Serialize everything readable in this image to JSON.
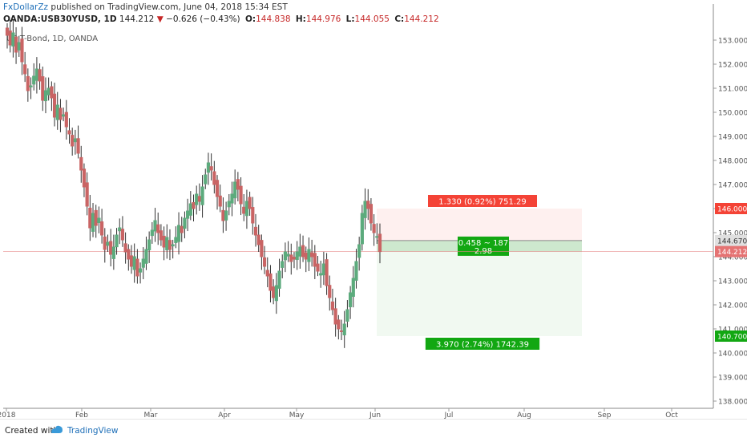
{
  "header": {
    "author": "FxDollarZz",
    "published_text": " published on TradingView.com, June 04, 2018 15:34 EST",
    "symbol": "OANDA:USB30YUSD, 1D",
    "last": "144.212",
    "change_arrow": "▼",
    "change": "−0.626 (−0.43%)",
    "open_label": "O:",
    "open": "144.838",
    "high_label": "H:",
    "high": "144.976",
    "low_label": "L:",
    "low": "144.055",
    "close_label": "C:",
    "close": "144.212"
  },
  "footer": {
    "created_with": "Created with",
    "brand": "TradingView",
    "logo_icon": "tradingview-logo-icon"
  },
  "colors": {
    "up": "#5cab7d",
    "down": "#c96464",
    "price_line": "#e88a8a"
  },
  "chart_data": {
    "type": "candlestick",
    "title": "US T-Bond, 1D, OANDA",
    "ylim": [
      137.7,
      153.5
    ],
    "y_ticks": [
      "153.000",
      "152.000",
      "151.000",
      "150.000",
      "149.000",
      "148.000",
      "147.000",
      "146.000",
      "145.000",
      "144.000",
      "143.000",
      "142.000",
      "141.000",
      "140.000",
      "139.000",
      "138.000"
    ],
    "x_ticks": [
      "2018",
      "Feb",
      "Mar",
      "Apr",
      "May",
      "Jun",
      "Jul",
      "Aug",
      "Sep",
      "Oct"
    ],
    "closes": [
      153.2,
      152.8,
      153.3,
      152.5,
      152.9,
      152.1,
      151.6,
      150.9,
      151.1,
      151.5,
      151.8,
      151.3,
      150.5,
      150.9,
      151.0,
      150.6,
      149.8,
      150.3,
      149.7,
      149.9,
      149.4,
      149.1,
      148.6,
      148.9,
      148.3,
      147.6,
      146.9,
      146.1,
      145.2,
      145.8,
      145.3,
      145.6,
      144.9,
      144.3,
      144.6,
      144.1,
      144.4,
      144.9,
      145.2,
      144.7,
      144.2,
      143.9,
      143.6,
      144.0,
      143.2,
      143.5,
      143.9,
      144.3,
      144.7,
      145.1,
      145.5,
      145.0,
      144.7,
      144.4,
      144.8,
      144.3,
      144.5,
      144.8,
      145.3,
      145.0,
      145.6,
      145.9,
      146.2,
      146.0,
      146.6,
      146.3,
      146.9,
      147.4,
      147.9,
      147.6,
      147.0,
      146.5,
      146.1,
      145.5,
      145.9,
      146.3,
      146.6,
      147.1,
      146.8,
      146.2,
      145.8,
      146.3,
      146.0,
      145.4,
      144.9,
      144.5,
      144.0,
      143.6,
      143.2,
      142.6,
      142.3,
      142.8,
      143.4,
      143.8,
      144.2,
      144.1,
      143.8,
      143.9,
      144.2,
      144.4,
      144.0,
      143.9,
      144.3,
      144.0,
      143.6,
      143.4,
      143.3,
      143.7,
      142.8,
      142.3,
      141.8,
      141.2,
      141.0,
      140.9,
      141.2,
      141.8,
      142.5,
      143.1,
      143.8,
      144.5,
      145.8,
      146.3,
      146.0,
      145.4,
      145.0,
      144.838,
      144.212
    ],
    "price_lines": {
      "current": "144.212",
      "entry": "144.670",
      "target": "146.000",
      "stop": "140.700"
    },
    "position": {
      "upper_label": "1.330 (0.92%) 751.29",
      "middle_label_1": "0.458 ~ 187",
      "middle_label_2": "2.98",
      "lower_label": "3.970 (2.74%) 1742.39",
      "entry": 144.67,
      "current": 144.212,
      "upper": 146.0,
      "lower": 140.7
    }
  }
}
